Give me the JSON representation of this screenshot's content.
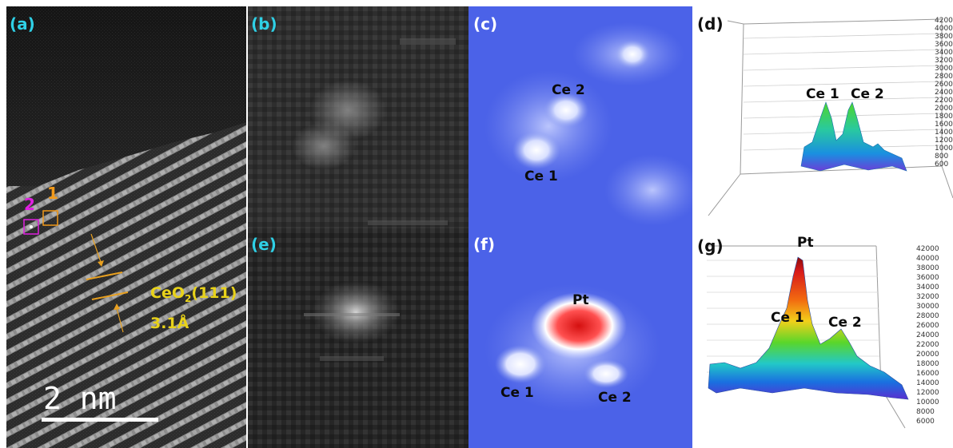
{
  "panels": {
    "a": {
      "label": "(a)",
      "site_label_2": "2",
      "site_label_1": "1",
      "lattice_plane": "CeO",
      "lattice_plane_subscript": "2",
      "lattice_plane_index": "(111)",
      "lattice_spacing": "3.1Å",
      "scale_bar": "2 nm"
    },
    "b": {
      "label": "(b)"
    },
    "c": {
      "label": "(c)",
      "peaks": [
        "Ce 2",
        "Ce 1"
      ]
    },
    "d": {
      "label": "(d)",
      "peaks": [
        "Ce 1",
        "Ce 2"
      ],
      "axis_ticks": [
        "4200",
        "4000",
        "3800",
        "3600",
        "3400",
        "3200",
        "3000",
        "2800",
        "2600",
        "2400",
        "2200",
        "2000",
        "1800",
        "1600",
        "1400",
        "1200",
        "1000",
        "800",
        "600"
      ]
    },
    "e": {
      "label": "(e)"
    },
    "f": {
      "label": "(f)",
      "peaks": [
        "Pt",
        "Ce 1",
        "Ce 2"
      ]
    },
    "g": {
      "label": "(g)",
      "peaks": [
        "Pt",
        "Ce 1",
        "Ce 2"
      ],
      "axis_ticks": [
        "42000",
        "40000",
        "38000",
        "36000",
        "34000",
        "32000",
        "30000",
        "28000",
        "26000",
        "24000",
        "22000",
        "20000",
        "18000",
        "16000",
        "14000",
        "12000",
        "10000",
        "8000",
        "6000"
      ]
    }
  },
  "colors": {
    "label_cyan": "#2fd0e6",
    "site_2_magenta": "#e020e0",
    "site_1_orange": "#f29a1a",
    "lattice_yellow": "#e8d21a",
    "spacing_line_orange": "#e8a020"
  }
}
